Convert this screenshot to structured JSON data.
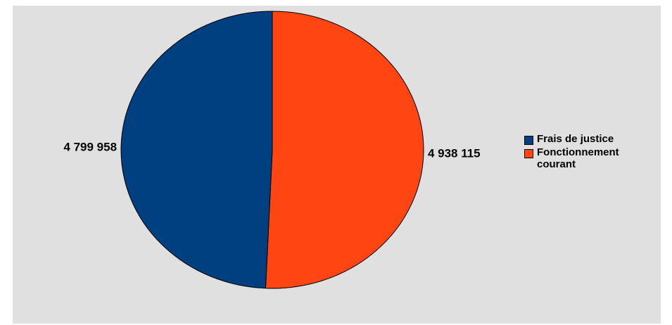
{
  "chart_data": {
    "type": "pie",
    "title": "",
    "categories": [
      "Frais de justice",
      "Fonctionnement courant"
    ],
    "values": [
      4799958,
      4938115
    ],
    "value_labels": [
      "4 799 958",
      "4 938 115"
    ],
    "colors": [
      "#004080",
      "#ff4512"
    ],
    "start_angle": "12 o'clock",
    "direction": "clockwise",
    "order": "second slice drawn first from top, clockwise",
    "legend_position": "right"
  },
  "legend": {
    "items": [
      {
        "label": "Frais de justice",
        "color": "#004080"
      },
      {
        "label": "Fonctionnement courant",
        "color": "#ff4512"
      }
    ]
  }
}
